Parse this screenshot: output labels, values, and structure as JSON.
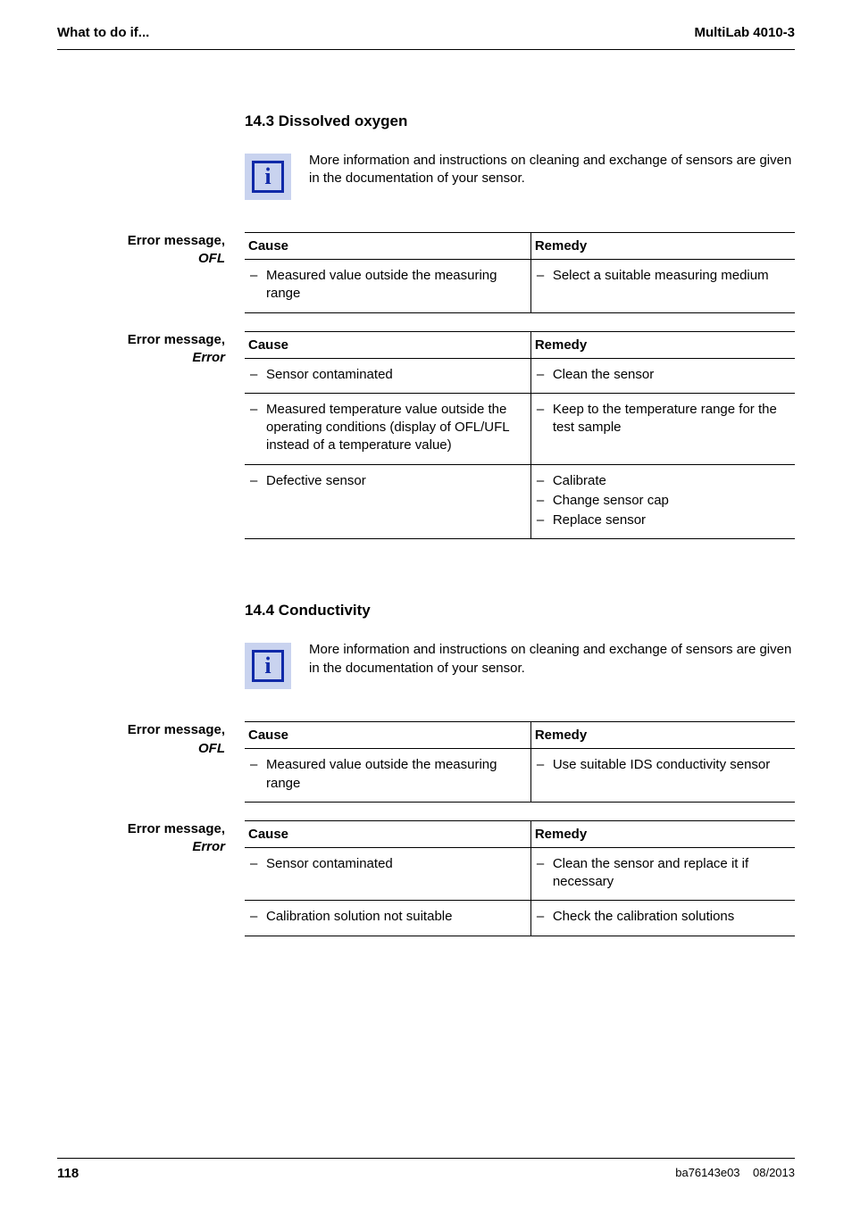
{
  "header": {
    "left": "What to do if...",
    "right": "MultiLab 4010-3"
  },
  "section_14_3": {
    "heading": "14.3   Dissolved oxygen",
    "info": "More information and instructions on cleaning and exchange of sensors are given in the documentation of your sensor.",
    "ofl_table": {
      "side_label_line1": "Error message,",
      "side_label_line2": "OFL",
      "cause_header": "Cause",
      "remedy_header": "Remedy",
      "rows": [
        {
          "cause": "Measured value outside the measuring range",
          "remedy": "Select a suitable measuring medium"
        }
      ]
    },
    "error_table": {
      "side_label_line1": "Error message,",
      "side_label_line2": "Error",
      "cause_header": "Cause",
      "remedy_header": "Remedy",
      "rows": [
        {
          "causes": [
            "Sensor contaminated"
          ],
          "remedies": [
            "Clean the sensor"
          ]
        },
        {
          "causes": [
            "Measured temperature value outside the operating conditions (display of OFL/UFL instead of a temperature value)"
          ],
          "remedies": [
            "Keep to the temperature range for the test sample"
          ]
        },
        {
          "causes": [
            "Defective sensor"
          ],
          "remedies": [
            "Calibrate",
            "Change sensor cap",
            "Replace sensor"
          ]
        }
      ]
    }
  },
  "section_14_4": {
    "heading": "14.4   Conductivity",
    "info": "More information and instructions on cleaning and exchange of sensors are given in the documentation of your sensor.",
    "ofl_table": {
      "side_label_line1": "Error message,",
      "side_label_line2": "OFL",
      "cause_header": "Cause",
      "remedy_header": "Remedy",
      "rows": [
        {
          "cause": "Measured value outside the measuring range",
          "remedy": "Use suitable IDS conductivity sensor"
        }
      ]
    },
    "error_table": {
      "side_label_line1": "Error message,",
      "side_label_line2": "Error",
      "cause_header": "Cause",
      "remedy_header": "Remedy",
      "rows": [
        {
          "causes": [
            "Sensor contaminated"
          ],
          "remedies": [
            "Clean the sensor and replace it if necessary"
          ]
        },
        {
          "causes": [
            "Calibration solution not suitable"
          ],
          "remedies": [
            "Check the calibration solutions"
          ]
        }
      ]
    }
  },
  "footer": {
    "page": "118",
    "doc": "ba76143e03",
    "date": "08/2013"
  }
}
